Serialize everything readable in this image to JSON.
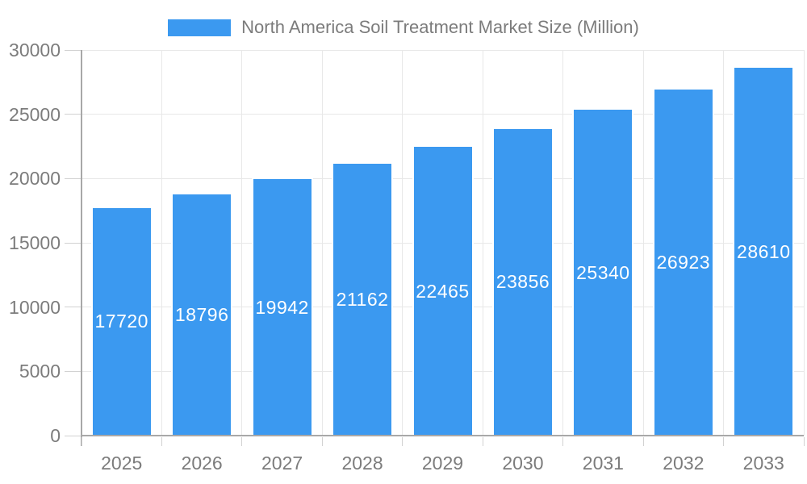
{
  "chart_data": {
    "type": "bar",
    "title": "North America Soil Treatment Market Size (Million)",
    "legend_position": "top",
    "categories": [
      "2025",
      "2026",
      "2027",
      "2028",
      "2029",
      "2030",
      "2031",
      "2032",
      "2033"
    ],
    "series": [
      {
        "name": "North America Soil Treatment Market Size (Million)",
        "values": [
          17720,
          18796,
          19942,
          21162,
          22465,
          23856,
          25340,
          26923,
          28610
        ]
      }
    ],
    "value_labels": {
      "position": "inside-center",
      "color": "#FFFFFF"
    },
    "xlabel": "",
    "ylabel": "",
    "ylim": [
      0,
      30000
    ],
    "yticks": [
      0,
      5000,
      10000,
      15000,
      20000,
      25000,
      30000
    ],
    "ytick_labels": [
      "0",
      "5000",
      "10000",
      "15000",
      "20000",
      "25000",
      "30000"
    ],
    "grid": true
  },
  "colors": {
    "bar": "#3B99F0",
    "grid": "#E8E8E8",
    "axis": "#A8A8A8",
    "tick": "#D2D2D2",
    "text": "#7C7C7C",
    "value_label": "#FFFFFF",
    "background": "#FFFFFF"
  }
}
